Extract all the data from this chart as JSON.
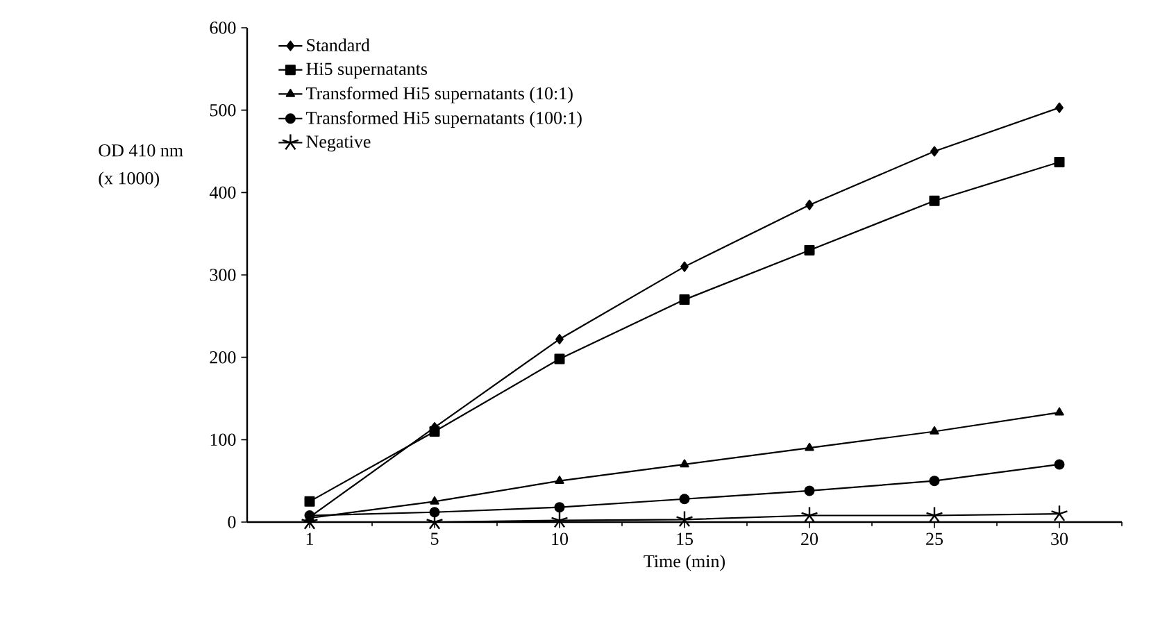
{
  "chart_data": {
    "type": "line",
    "xlabel": "Time (min)",
    "ylabel": "OD 410 nm (x 1000)",
    "categories": [
      "1",
      "5",
      "10",
      "15",
      "20",
      "25",
      "30"
    ],
    "ylim": [
      0,
      600
    ],
    "yticks": [
      0,
      100,
      200,
      300,
      400,
      500,
      600
    ],
    "legend": "top left",
    "grid": false,
    "line_style": "solid",
    "series": [
      {
        "name": "Standard",
        "color": "#000000",
        "marker": "diamond",
        "values": [
          6,
          115,
          222,
          310,
          385,
          450,
          503
        ]
      },
      {
        "name": "Hi5 supernatants",
        "color": "#000000",
        "marker": "square",
        "values": [
          25,
          110,
          198,
          270,
          330,
          390,
          437
        ]
      },
      {
        "name": "Transformed Hi5 supernatants (10:1)",
        "color": "#000000",
        "marker": "triangle",
        "values": [
          5,
          25,
          50,
          70,
          90,
          110,
          133
        ]
      },
      {
        "name": "Transformed Hi5 supernatants (100:1)",
        "color": "#000000",
        "marker": "circle",
        "values": [
          8,
          12,
          18,
          28,
          38,
          50,
          70
        ]
      },
      {
        "name": "Negative",
        "color": "#000000",
        "marker": "cross",
        "values": [
          0,
          0,
          2,
          3,
          8,
          8,
          10
        ]
      }
    ]
  }
}
